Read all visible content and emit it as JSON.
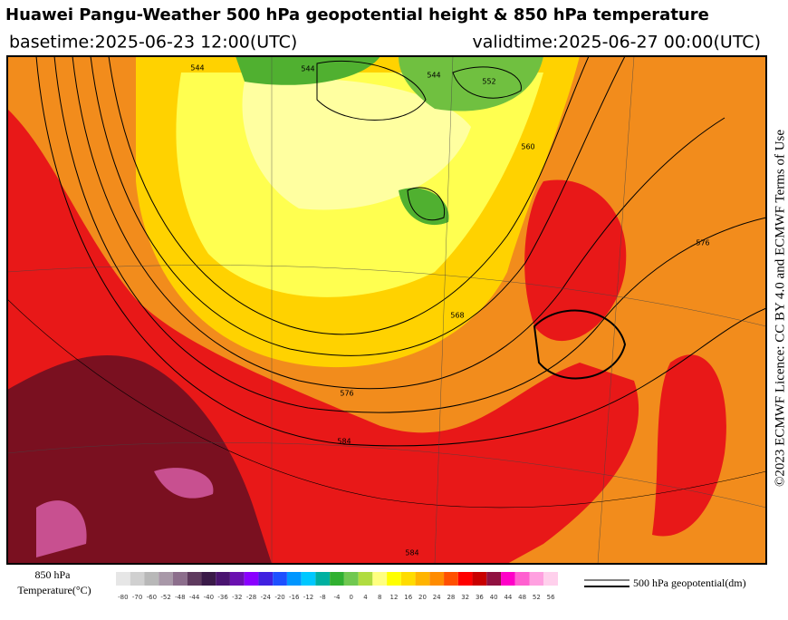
{
  "header": {
    "title": "Huawei Pangu-Weather 500 hPa geopotential height & 850 hPa temperature",
    "basetime": "basetime:2025-06-23 12:00(UTC)",
    "validtime": "validtime:2025-06-27 00:00(UTC)"
  },
  "credit": "©2023 ECMWF Licence: CC BY 4.0 and ECMWF Terms of Use",
  "map": {
    "contour_labels": [
      "544",
      "544",
      "576",
      "584",
      "584",
      "576",
      "568",
      "560",
      "552",
      "544"
    ]
  },
  "legend": {
    "label_line1": "850 hPa",
    "label_line2": "Temperature(°C)",
    "contour_label": "500 hPa geopotential(dm)",
    "ticks": [
      -80,
      -70,
      -60,
      -52,
      -48,
      -44,
      -40,
      -36,
      -32,
      -28,
      -24,
      -20,
      -16,
      -12,
      -8,
      -4,
      0,
      4,
      8,
      12,
      16,
      20,
      24,
      28,
      32,
      36,
      40,
      44,
      48,
      52,
      56
    ],
    "colors": [
      "#e6e6e6",
      "#d0d0d0",
      "#b8b8b8",
      "#a898a8",
      "#8c6e8c",
      "#5e3a5e",
      "#3a1a48",
      "#4a1470",
      "#6a10b0",
      "#8a00ff",
      "#4020e0",
      "#1e50ff",
      "#0096ff",
      "#00c8ff",
      "#00b0a0",
      "#30b030",
      "#70c850",
      "#b0dc40",
      "#ffff80",
      "#ffff00",
      "#ffdc00",
      "#ffb400",
      "#ff8c00",
      "#ff5000",
      "#ff0000",
      "#c80000",
      "#901040",
      "#ff00c8",
      "#ff60d0",
      "#ffa0e0",
      "#ffd0ec"
    ]
  }
}
